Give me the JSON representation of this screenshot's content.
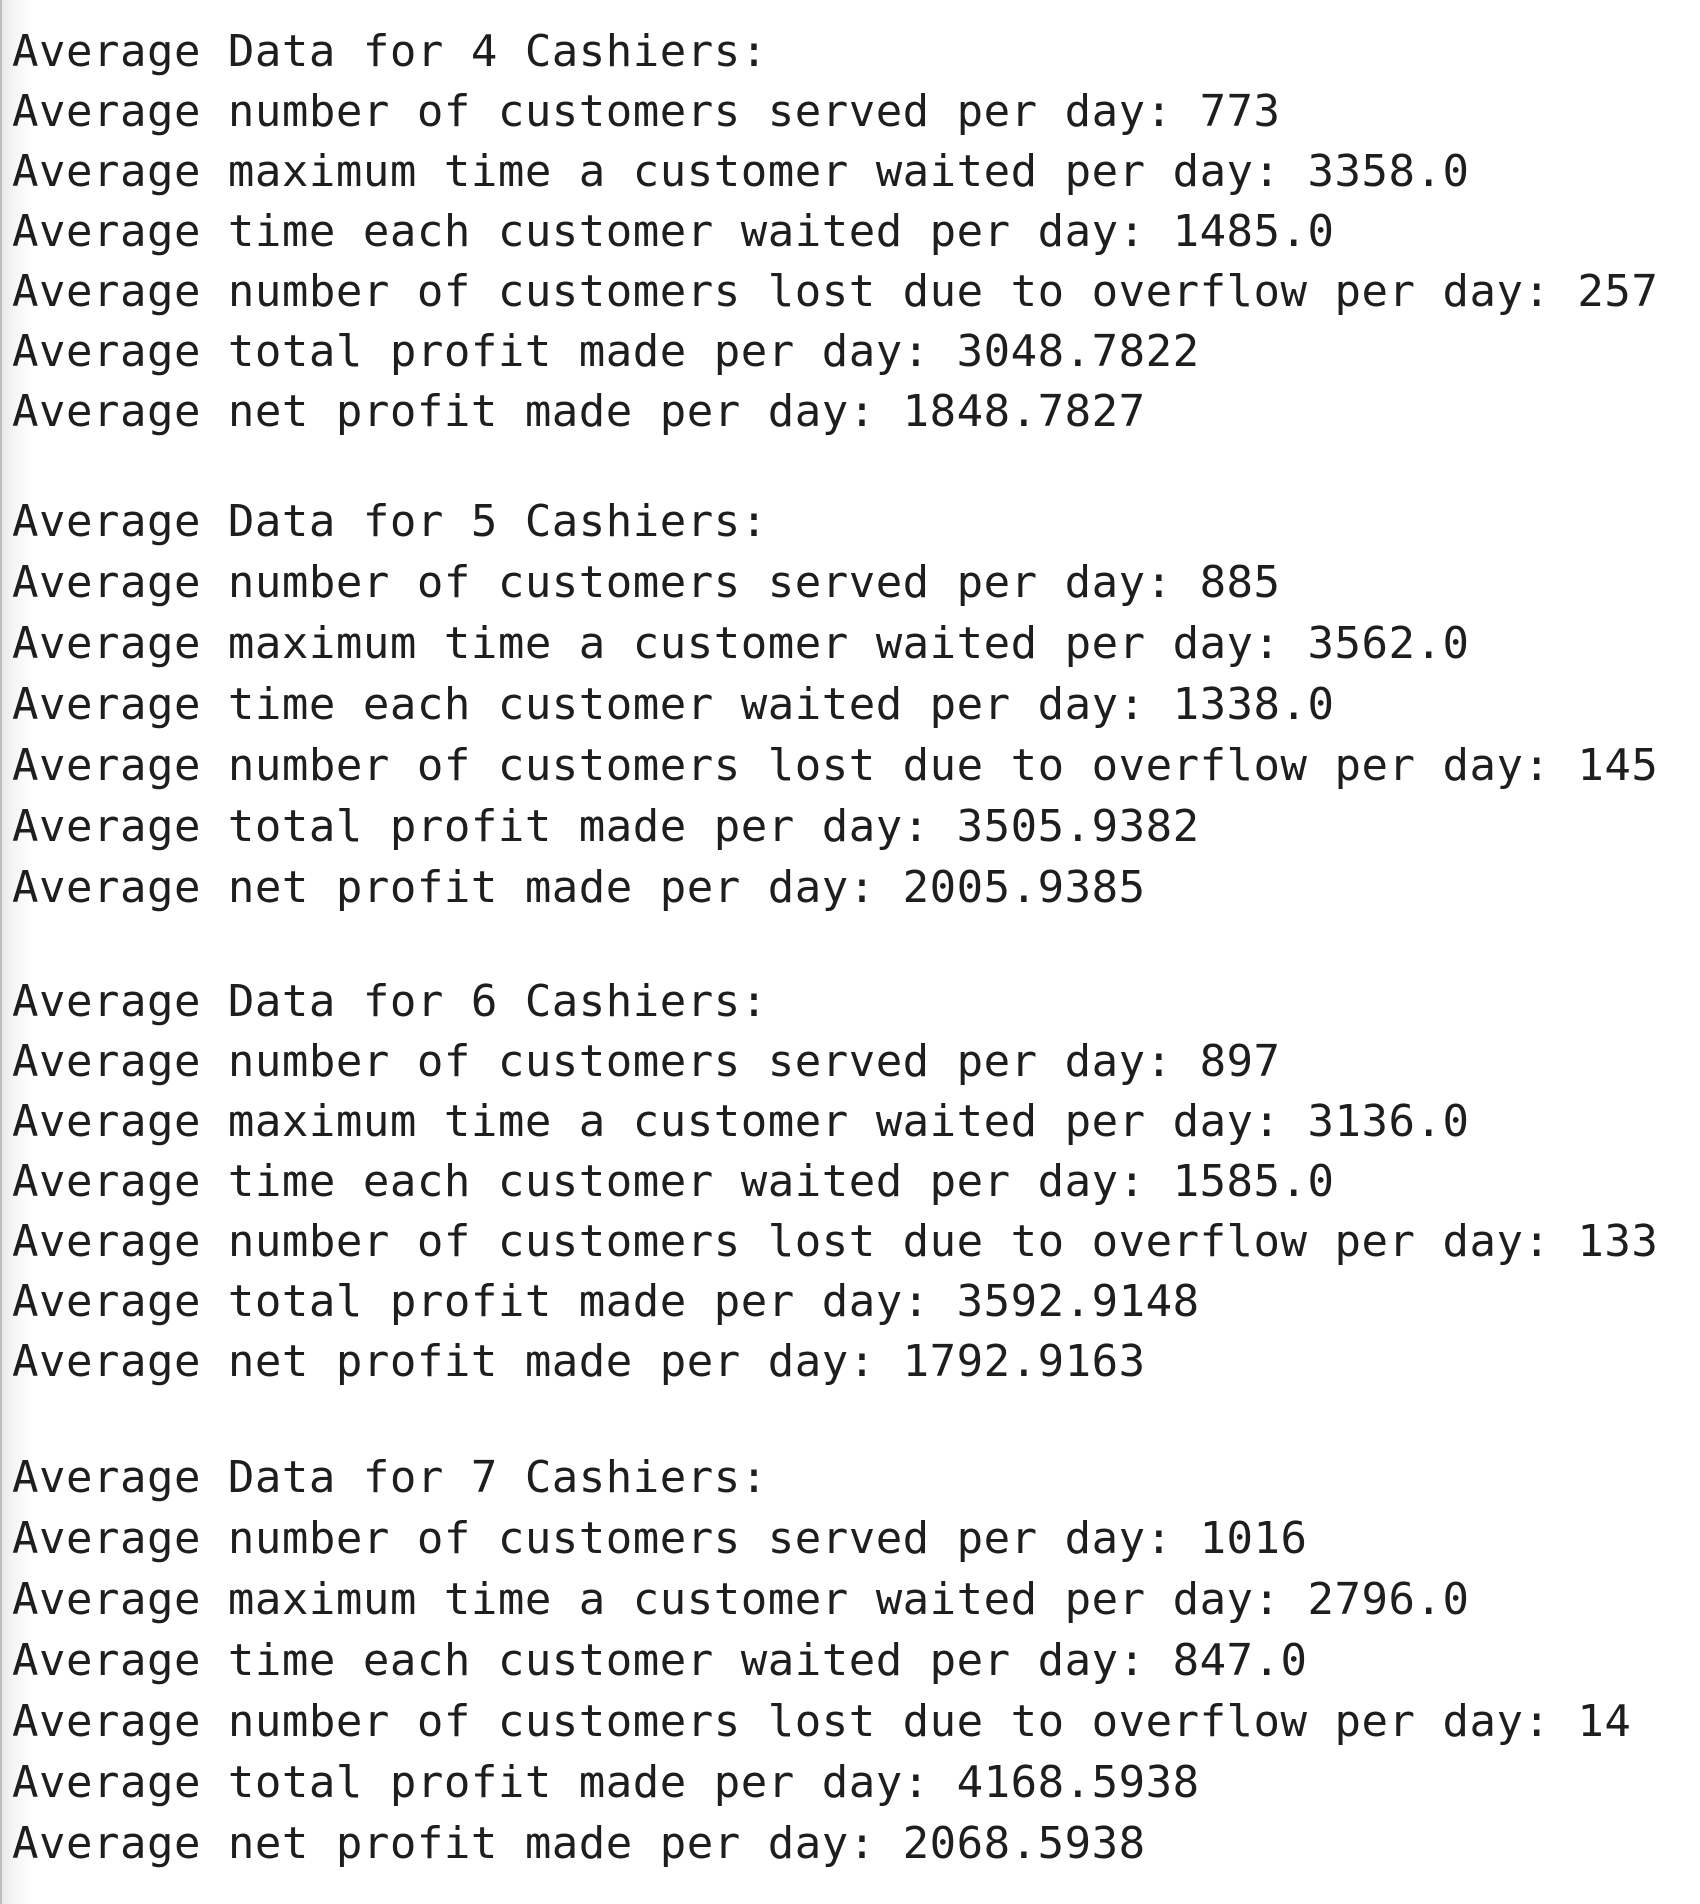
{
  "blocks": [
    {
      "heading": "Average Data for 4 Cashiers:",
      "lines": [
        "Average number of customers served per day: 773",
        "Average maximum time a customer waited per day: 3358.0",
        "Average time each customer waited per day: 1485.0",
        "Average number of customers lost due to overflow per day: 257",
        "Average total profit made per day: 3048.7822",
        "Average net profit made per day: 1848.7827"
      ]
    },
    {
      "heading": "Average Data for 5 Cashiers:",
      "lines": [
        "Average number of customers served per day: 885",
        "Average maximum time a customer waited per day: 3562.0",
        "Average time each customer waited per day: 1338.0",
        "Average number of customers lost due to overflow per day: 145",
        "Average total profit made per day: 3505.9382",
        "Average net profit made per day: 2005.9385"
      ]
    },
    {
      "heading": "Average Data for 6 Cashiers:",
      "lines": [
        "Average number of customers served per day: 897",
        "Average maximum time a customer waited per day: 3136.0",
        "Average time each customer waited per day: 1585.0",
        "Average number of customers lost due to overflow per day: 133",
        "Average total profit made per day: 3592.9148",
        "Average net profit made per day: 1792.9163"
      ]
    },
    {
      "heading": "Average Data for 7 Cashiers:",
      "lines": [
        "Average number of customers served per day: 1016",
        "Average maximum time a customer waited per day: 2796.0",
        "Average time each customer waited per day: 847.0",
        "Average number of customers lost due to overflow per day: 14",
        "Average total profit made per day: 4168.5938",
        "Average net profit made per day: 2068.5938"
      ]
    }
  ]
}
